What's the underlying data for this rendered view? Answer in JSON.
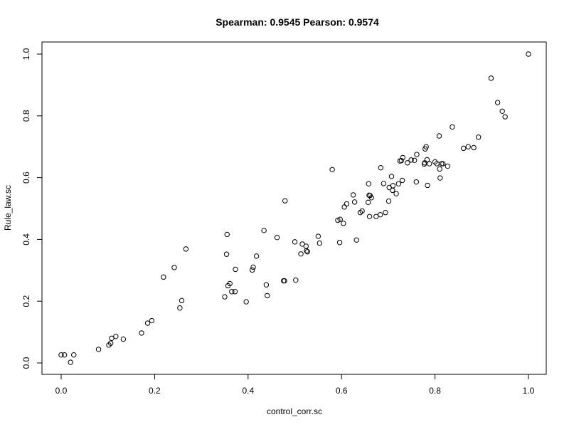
{
  "chart_data": {
    "type": "scatter",
    "title": "Spearman: 0.9545 Pearson: 0.9574",
    "xlabel": "control_corr.sc",
    "ylabel": "Rule_law.sc",
    "xlim": [
      0,
      1
    ],
    "ylim": [
      0,
      1
    ],
    "xticks": [
      "0.0",
      "0.2",
      "0.4",
      "0.6",
      "0.8",
      "1.0"
    ],
    "yticks": [
      "0.0",
      "0.2",
      "0.4",
      "0.6",
      "0.8",
      "1.0"
    ],
    "grid": false,
    "marker": "open-circle",
    "colors": {
      "points": "#000000",
      "axes": "#000000",
      "background": "#ffffff"
    },
    "points": [
      [
        0.0,
        0.026
      ],
      [
        0.007,
        0.026
      ],
      [
        0.02,
        0.002
      ],
      [
        0.027,
        0.026
      ],
      [
        0.08,
        0.044
      ],
      [
        0.102,
        0.058
      ],
      [
        0.106,
        0.064
      ],
      [
        0.108,
        0.08
      ],
      [
        0.117,
        0.086
      ],
      [
        0.133,
        0.077
      ],
      [
        0.172,
        0.097
      ],
      [
        0.185,
        0.129
      ],
      [
        0.194,
        0.137
      ],
      [
        0.219,
        0.278
      ],
      [
        0.242,
        0.309
      ],
      [
        0.254,
        0.178
      ],
      [
        0.258,
        0.202
      ],
      [
        0.267,
        0.369
      ],
      [
        0.35,
        0.214
      ],
      [
        0.354,
        0.352
      ],
      [
        0.355,
        0.416
      ],
      [
        0.357,
        0.25
      ],
      [
        0.361,
        0.257
      ],
      [
        0.365,
        0.231
      ],
      [
        0.372,
        0.231
      ],
      [
        0.373,
        0.303
      ],
      [
        0.396,
        0.198
      ],
      [
        0.409,
        0.301
      ],
      [
        0.411,
        0.31
      ],
      [
        0.418,
        0.346
      ],
      [
        0.434,
        0.429
      ],
      [
        0.439,
        0.253
      ],
      [
        0.441,
        0.218
      ],
      [
        0.462,
        0.406
      ],
      [
        0.476,
        0.266
      ],
      [
        0.478,
        0.266
      ],
      [
        0.479,
        0.525
      ],
      [
        0.5,
        0.392
      ],
      [
        0.502,
        0.268
      ],
      [
        0.513,
        0.353
      ],
      [
        0.516,
        0.385
      ],
      [
        0.524,
        0.378
      ],
      [
        0.525,
        0.363
      ],
      [
        0.527,
        0.36
      ],
      [
        0.55,
        0.41
      ],
      [
        0.553,
        0.388
      ],
      [
        0.58,
        0.626
      ],
      [
        0.592,
        0.462
      ],
      [
        0.596,
        0.39
      ],
      [
        0.597,
        0.465
      ],
      [
        0.604,
        0.452
      ],
      [
        0.606,
        0.505
      ],
      [
        0.611,
        0.515
      ],
      [
        0.625,
        0.544
      ],
      [
        0.628,
        0.521
      ],
      [
        0.632,
        0.398
      ],
      [
        0.64,
        0.487
      ],
      [
        0.644,
        0.492
      ],
      [
        0.657,
        0.52
      ],
      [
        0.658,
        0.58
      ],
      [
        0.659,
        0.543
      ],
      [
        0.66,
        0.474
      ],
      [
        0.661,
        0.542
      ],
      [
        0.664,
        0.535
      ],
      [
        0.674,
        0.474
      ],
      [
        0.683,
        0.48
      ],
      [
        0.684,
        0.632
      ],
      [
        0.69,
        0.581
      ],
      [
        0.694,
        0.487
      ],
      [
        0.701,
        0.524
      ],
      [
        0.702,
        0.568
      ],
      [
        0.707,
        0.604
      ],
      [
        0.709,
        0.559
      ],
      [
        0.71,
        0.574
      ],
      [
        0.717,
        0.548
      ],
      [
        0.722,
        0.58
      ],
      [
        0.725,
        0.654
      ],
      [
        0.728,
        0.655
      ],
      [
        0.73,
        0.591
      ],
      [
        0.731,
        0.665
      ],
      [
        0.741,
        0.648
      ],
      [
        0.749,
        0.657
      ],
      [
        0.756,
        0.656
      ],
      [
        0.76,
        0.586
      ],
      [
        0.761,
        0.675
      ],
      [
        0.777,
        0.644
      ],
      [
        0.778,
        0.648
      ],
      [
        0.779,
        0.693
      ],
      [
        0.781,
        0.7
      ],
      [
        0.783,
        0.658
      ],
      [
        0.784,
        0.575
      ],
      [
        0.788,
        0.645
      ],
      [
        0.8,
        0.651
      ],
      [
        0.804,
        0.645
      ],
      [
        0.809,
        0.735
      ],
      [
        0.81,
        0.628
      ],
      [
        0.811,
        0.599
      ],
      [
        0.814,
        0.645
      ],
      [
        0.817,
        0.645
      ],
      [
        0.827,
        0.637
      ],
      [
        0.837,
        0.764
      ],
      [
        0.861,
        0.695
      ],
      [
        0.871,
        0.7
      ],
      [
        0.883,
        0.697
      ],
      [
        0.893,
        0.731
      ],
      [
        0.92,
        0.922
      ],
      [
        0.934,
        0.843
      ],
      [
        0.944,
        0.815
      ],
      [
        0.95,
        0.797
      ],
      [
        1.0,
        1.0
      ]
    ]
  }
}
